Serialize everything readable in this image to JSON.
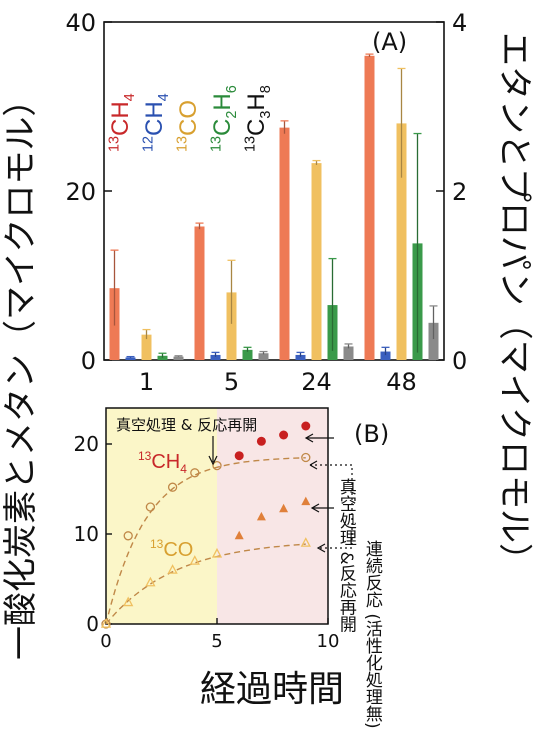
{
  "labels": {
    "left_axis": "一酸化炭素とメタン（マイクロモル）",
    "right_axis": "エタンとプロパン（マイクロモル）",
    "x_axis": "経過時間",
    "note_restart": "真空処理\n&反応再開",
    "note_continuous": "連続反応\n(活性化処理無)"
  },
  "colors": {
    "ch4_13": "#ee7a55",
    "ch4_12": "#3a5fbf",
    "co_13": "#f0c060",
    "c2h6_13": "#3a9a4a",
    "c3h8_13": "#8a8a8a",
    "ch4_13_text": "#c8282a",
    "co_13_text": "#d8a030",
    "c2h6_13_text": "#2a8a3a",
    "ch4_12_text": "#2a50b0",
    "c3h8_13_text": "#111111",
    "panel_b_left_bg": "#fbf6c8",
    "panel_b_right_bg": "#f8e6e6",
    "dashed_fit": "#c08848",
    "marker_red": "#c82020",
    "marker_orange": "#e0803a"
  },
  "chart_data": [
    {
      "panel": "(A)",
      "type": "bar",
      "categories": [
        "1",
        "5",
        "24",
        "48"
      ],
      "left_ylim": [
        0,
        40
      ],
      "left_yticks": [
        "0",
        "20",
        "40"
      ],
      "right_ylim": [
        0,
        4
      ],
      "right_yticks": [
        "0",
        "2",
        "4"
      ],
      "legend": [
        {
          "mass": "13",
          "formula": "CH",
          "sub": "4",
          "sub2": "",
          "color": "ch4_13_text"
        },
        {
          "mass": "12",
          "formula": "CH",
          "sub": "4",
          "sub2": "",
          "color": "ch4_12_text"
        },
        {
          "mass": "13",
          "formula": "CO",
          "sub": "",
          "sub2": "",
          "color": "co_13_text"
        },
        {
          "mass": "13",
          "formula": "C",
          "sub": "2",
          "formula2": "H",
          "sub2": "6",
          "color": "c2h6_13_text"
        },
        {
          "mass": "13",
          "formula": "C",
          "sub": "3",
          "formula2": "H",
          "sub2": "8",
          "color": "c3h8_13_text"
        }
      ],
      "series": [
        {
          "key": "ch4_13",
          "axis": "left",
          "values": [
            8.5,
            15.8,
            27.5,
            36.0
          ],
          "err": [
            4.5,
            0.4,
            0.8,
            0.2
          ]
        },
        {
          "key": "ch4_12",
          "axis": "left",
          "values": [
            0.3,
            0.6,
            0.6,
            1.0
          ],
          "err": [
            0.1,
            0.3,
            0.3,
            0.5
          ]
        },
        {
          "key": "co_13",
          "axis": "left",
          "values": [
            3.0,
            8.0,
            23.3,
            28.0
          ],
          "err": [
            0.6,
            3.8,
            0.3,
            6.5
          ]
        },
        {
          "key": "c2h6_13",
          "axis": "right",
          "values": [
            0.05,
            0.12,
            0.65,
            1.38
          ],
          "err": [
            0.03,
            0.03,
            0.55,
            1.3
          ]
        },
        {
          "key": "c3h8_13",
          "axis": "right",
          "values": [
            0.04,
            0.08,
            0.16,
            0.44
          ],
          "err": [
            0.01,
            0.02,
            0.03,
            0.2
          ]
        }
      ]
    },
    {
      "panel": "(B)",
      "type": "scatter",
      "xlim": [
        0,
        10
      ],
      "ylim": [
        0,
        24
      ],
      "xticks": [
        "0",
        "5",
        "10"
      ],
      "yticks": [
        "0",
        "10",
        "20"
      ],
      "annotation_restart": "真空処理 & 反応再開",
      "series": [
        {
          "name_mass": "13",
          "name_formula": "CH",
          "name_sub": "4",
          "marker": "open-circle",
          "x": [
            0,
            1,
            2,
            3,
            4,
            5,
            9
          ],
          "y": [
            0,
            9.8,
            13.0,
            15.2,
            16.8,
            17.6,
            18.5
          ]
        },
        {
          "name_mass": "13",
          "name_formula": "CO",
          "name_sub": "",
          "marker": "open-triangle",
          "x": [
            0,
            1,
            2,
            3,
            4,
            5,
            9
          ],
          "y": [
            0,
            2.4,
            4.6,
            6.0,
            7.0,
            7.8,
            9.0
          ]
        },
        {
          "marker": "filled-circle",
          "x": [
            6,
            7,
            8,
            9
          ],
          "y": [
            18.7,
            20.3,
            21.0,
            22.0
          ]
        },
        {
          "marker": "filled-triangle",
          "x": [
            6,
            7,
            8,
            9
          ],
          "y": [
            9.8,
            11.9,
            12.8,
            13.6
          ]
        }
      ]
    }
  ]
}
